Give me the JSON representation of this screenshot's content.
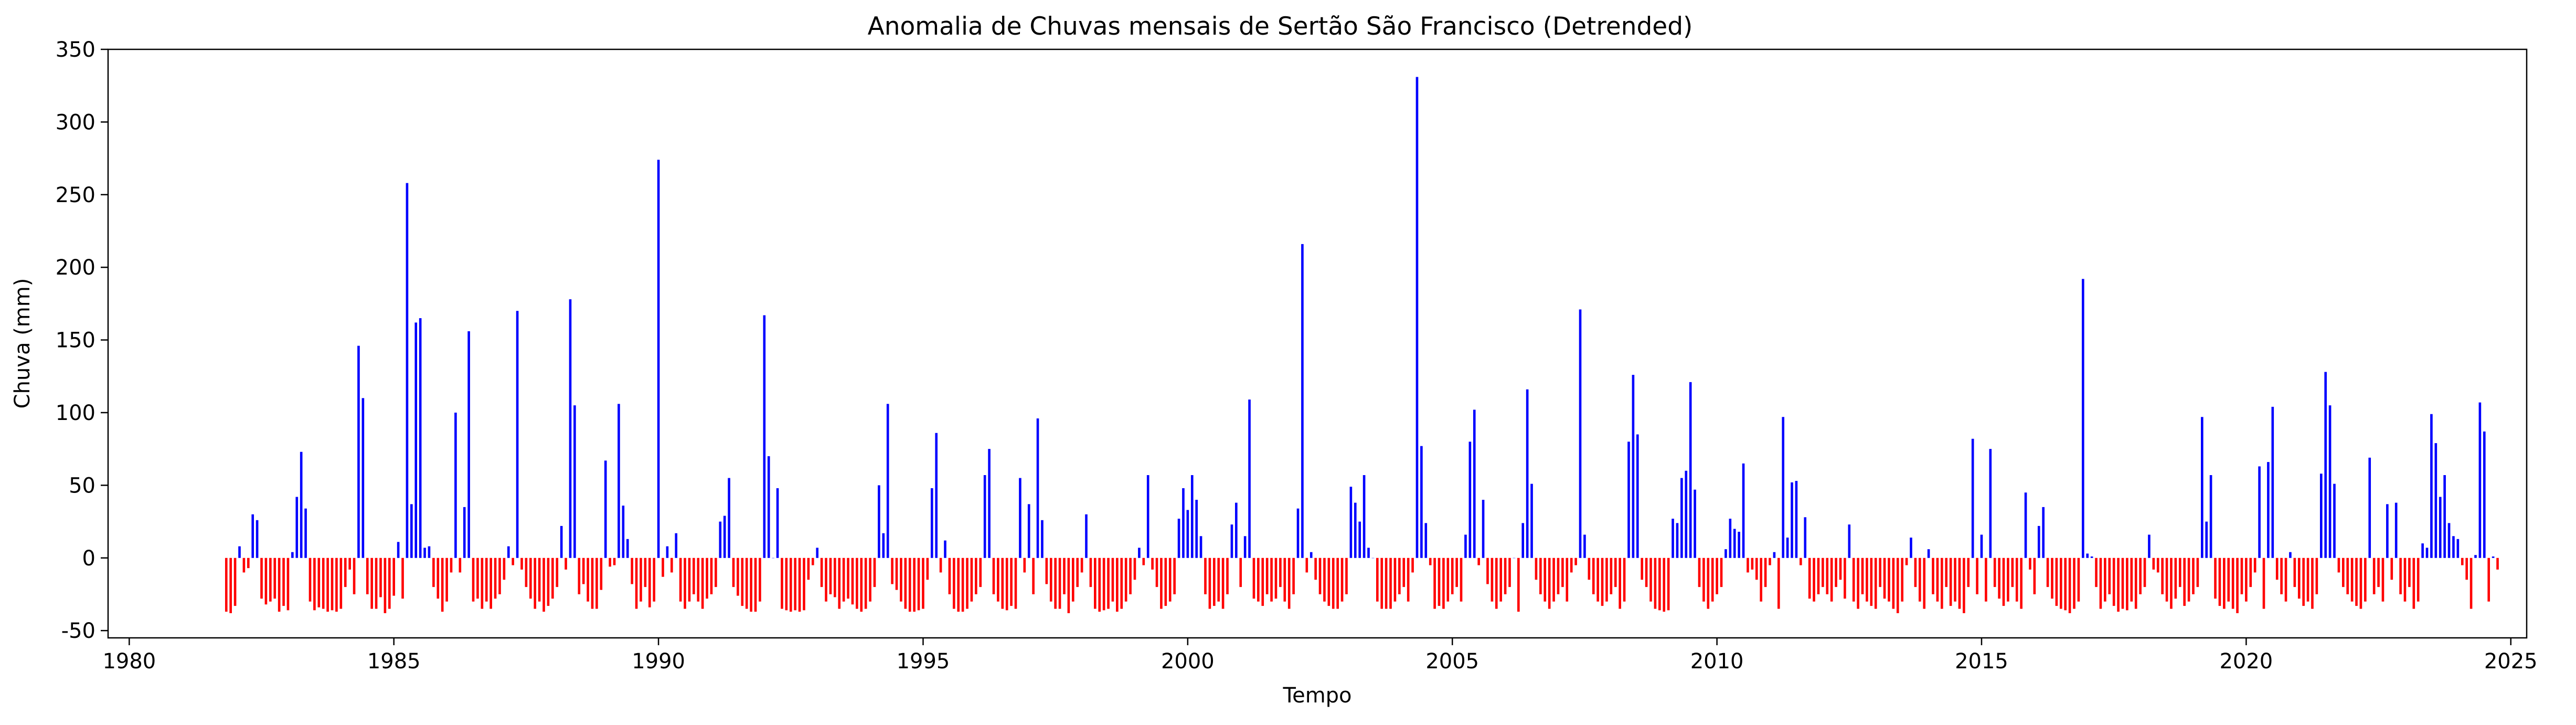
{
  "chart_data": {
    "type": "bar",
    "title": "Anomalia de Chuvas mensais de Sertão São Francisco (Detrended)",
    "xlabel": "Tempo",
    "ylabel": "Chuva (mm)",
    "xlim": [
      1979.6,
      2025.3
    ],
    "ylim": [
      -55,
      350
    ],
    "x_ticks": [
      1980,
      1985,
      1990,
      1995,
      2000,
      2005,
      2010,
      2015,
      2020,
      2025
    ],
    "y_ticks": [
      -50,
      0,
      50,
      100,
      150,
      200,
      250,
      300,
      350
    ],
    "grid": false,
    "legend": "none",
    "colors": {
      "positive": "#0000ff",
      "negative": "#ff0000"
    },
    "start": {
      "year": 1981,
      "month": 11
    },
    "values": [
      -37,
      -38,
      -33,
      8,
      -10,
      -7,
      30,
      26,
      -28,
      -32,
      -30,
      -28,
      -37,
      -33,
      -36,
      4,
      42,
      73,
      34,
      -30,
      -36,
      -34,
      -35,
      -37,
      -36,
      -37,
      -35,
      -20,
      -8,
      -25,
      146,
      110,
      -25,
      -35,
      -35,
      -27,
      -38,
      -35,
      -26,
      11,
      -28,
      258,
      37,
      162,
      165,
      7,
      8,
      -20,
      -28,
      -37,
      -30,
      -10,
      100,
      -10,
      35,
      156,
      -30,
      -28,
      -35,
      -30,
      -35,
      -28,
      -25,
      -15,
      8,
      -5,
      170,
      -8,
      -20,
      -28,
      -35,
      -30,
      -37,
      -33,
      -28,
      -20,
      22,
      -8,
      178,
      105,
      -25,
      -18,
      -30,
      -35,
      -35,
      -22,
      67,
      -6,
      -5,
      106,
      36,
      13,
      -18,
      -35,
      -30,
      -20,
      -34,
      -30,
      274,
      -13,
      8,
      -10,
      17,
      -30,
      -35,
      -30,
      -25,
      -30,
      -35,
      -28,
      -25,
      -20,
      25,
      29,
      55,
      -20,
      -26,
      -33,
      -35,
      -37,
      -37,
      -30,
      167,
      70,
      0,
      48,
      -35,
      -36,
      -37,
      -36,
      -37,
      -36,
      -15,
      -5,
      7,
      -20,
      -30,
      -25,
      -27,
      -35,
      -30,
      -28,
      -32,
      -35,
      -37,
      -35,
      -30,
      -20,
      50,
      17,
      106,
      -18,
      -22,
      -30,
      -35,
      -37,
      -37,
      -36,
      -35,
      -15,
      48,
      86,
      -10,
      12,
      -25,
      -35,
      -37,
      -37,
      -35,
      -30,
      -25,
      -20,
      57,
      75,
      -25,
      -30,
      -35,
      -36,
      -33,
      -35,
      55,
      -10,
      37,
      -25,
      96,
      26,
      -18,
      -30,
      -35,
      -35,
      -25,
      -38,
      -30,
      -20,
      -10,
      30,
      -20,
      -35,
      -37,
      -36,
      -35,
      -30,
      -37,
      -35,
      -30,
      -25,
      -15,
      7,
      -5,
      57,
      -8,
      -20,
      -35,
      -33,
      -30,
      -25,
      27,
      48,
      33,
      57,
      40,
      15,
      -25,
      -35,
      -33,
      -30,
      -35,
      -25,
      23,
      38,
      -20,
      15,
      109,
      -28,
      -30,
      -33,
      -25,
      -30,
      -28,
      -20,
      -30,
      -35,
      -25,
      34,
      216,
      -10,
      4,
      -15,
      -25,
      -30,
      -33,
      -35,
      -35,
      -30,
      -25,
      49,
      38,
      25,
      57,
      7,
      0,
      -30,
      -35,
      -35,
      -35,
      -30,
      -25,
      -20,
      -30,
      -10,
      331,
      77,
      24,
      -5,
      -35,
      -33,
      -35,
      -30,
      -25,
      -20,
      -30,
      16,
      80,
      102,
      -5,
      40,
      -18,
      -30,
      -35,
      -30,
      -25,
      -20,
      0,
      -37,
      24,
      116,
      51,
      -15,
      -25,
      -30,
      -35,
      -30,
      -25,
      -20,
      -30,
      -10,
      -5,
      171,
      16,
      -15,
      -25,
      -30,
      -33,
      -30,
      -25,
      -20,
      -35,
      -30,
      80,
      126,
      85,
      -15,
      -20,
      -30,
      -35,
      -36,
      -37,
      -36,
      27,
      24,
      55,
      60,
      121,
      47,
      -20,
      -30,
      -35,
      -30,
      -25,
      -20,
      6,
      27,
      20,
      18,
      65,
      -10,
      -8,
      -15,
      -30,
      -20,
      -5,
      4,
      -35,
      97,
      14,
      52,
      53,
      -5,
      28,
      -28,
      -30,
      -25,
      -20,
      -25,
      -30,
      -20,
      -15,
      -28,
      23,
      -30,
      -35,
      -25,
      -30,
      -33,
      -35,
      -20,
      -28,
      -30,
      -35,
      -38,
      -30,
      -5,
      14,
      -20,
      -30,
      -35,
      6,
      -25,
      -30,
      -35,
      -20,
      -33,
      -30,
      -35,
      -38,
      -20,
      82,
      -25,
      16,
      -30,
      75,
      -20,
      -28,
      -33,
      -30,
      -20,
      -30,
      -35,
      45,
      -8,
      -25,
      22,
      35,
      -20,
      -28,
      -33,
      -35,
      -36,
      -38,
      -35,
      -30,
      192,
      3,
      1,
      -20,
      -35,
      -30,
      -25,
      -33,
      -37,
      -35,
      -36,
      -30,
      -35,
      -25,
      -20,
      16,
      -8,
      -10,
      -25,
      -30,
      -35,
      -28,
      -20,
      -33,
      -30,
      -25,
      -20,
      97,
      25,
      57,
      -28,
      -33,
      -35,
      -30,
      -35,
      -38,
      -25,
      -30,
      -20,
      -10,
      63,
      -35,
      66,
      104,
      -15,
      -25,
      -30,
      4,
      -20,
      -28,
      -33,
      -30,
      -35,
      -25,
      58,
      128,
      105,
      51,
      -10,
      -20,
      -25,
      -30,
      -33,
      -35,
      -30,
      69,
      -25,
      -20,
      -30,
      37,
      -15,
      38,
      -25,
      -30,
      -20,
      -35,
      -30,
      10,
      7,
      99,
      79,
      42,
      57,
      24,
      15,
      13,
      -5,
      -15,
      -35,
      2,
      107,
      87,
      -30,
      1,
      -8
    ]
  }
}
